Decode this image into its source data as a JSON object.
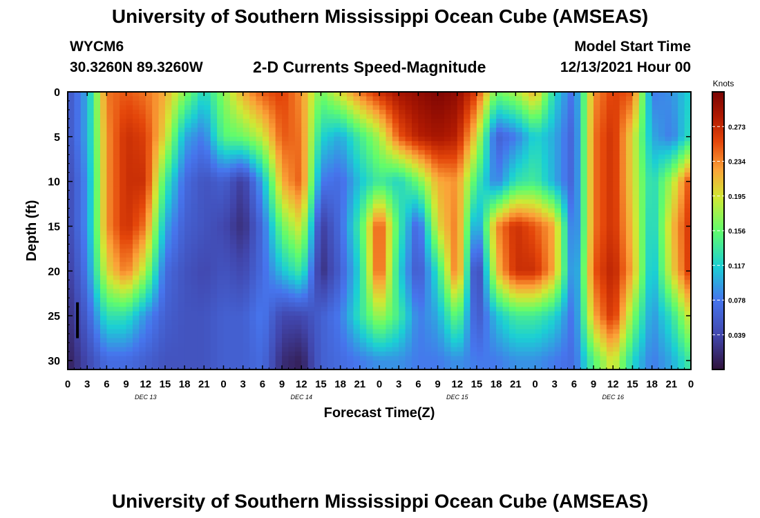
{
  "title": "University of Southern Mississippi Ocean Cube (AMSEAS)",
  "station": {
    "id": "WYCM6",
    "coords": "30.3260N  89.3260W"
  },
  "subtitle": "2-D Currents Speed-Magnitude",
  "model_start": {
    "label": "Model Start Time",
    "value": "12/13/2021 Hour 00"
  },
  "footer_title": "University of Southern Mississippi Ocean Cube (AMSEAS)",
  "chart_data": {
    "type": "heatmap",
    "title": "2-D Currents Speed-Magnitude",
    "xlabel": "Forecast Time(Z)",
    "ylabel": "Depth (ft)",
    "x_ticks": [
      "0",
      "3",
      "6",
      "9",
      "12",
      "15",
      "18",
      "21",
      "0",
      "3",
      "6",
      "9",
      "12",
      "15",
      "18",
      "21",
      "0",
      "3",
      "6",
      "9",
      "12",
      "15",
      "18",
      "21",
      "0",
      "3",
      "6",
      "9",
      "12",
      "15",
      "18",
      "21",
      "0"
    ],
    "day_labels": [
      "DEC 13",
      "DEC 14",
      "DEC 15",
      "DEC 16"
    ],
    "y_ticks": [
      "0",
      "5",
      "10",
      "15",
      "20",
      "25",
      "30"
    ],
    "xlim": [
      0,
      96
    ],
    "ylim": [
      0,
      31
    ],
    "colorbar": {
      "unit": "Knots",
      "range": [
        0,
        0.312
      ],
      "ticks": [
        "0.273",
        "0.234",
        "0.195",
        "0.156",
        "0.117",
        "0.078",
        "0.039"
      ]
    },
    "hours": [
      0,
      3,
      6,
      9,
      12,
      15,
      18,
      21,
      24,
      27,
      30,
      33,
      36,
      39,
      42,
      45,
      48,
      51,
      54,
      57,
      60,
      63,
      66,
      69,
      72,
      75,
      78,
      81,
      84,
      87,
      90,
      93,
      96
    ],
    "depths": [
      0,
      5,
      10,
      15,
      20,
      25,
      30
    ],
    "speed": [
      [
        0.05,
        0.1,
        0.24,
        0.25,
        0.24,
        0.22,
        0.17,
        0.12,
        0.17,
        0.22,
        0.25,
        0.26,
        0.23,
        0.16,
        0.2,
        0.24,
        0.27,
        0.29,
        0.3,
        0.31,
        0.3,
        0.26,
        0.16,
        0.18,
        0.22,
        0.12,
        0.07,
        0.23,
        0.26,
        0.25,
        0.08,
        0.09,
        0.12
      ],
      [
        0.05,
        0.1,
        0.23,
        0.27,
        0.26,
        0.2,
        0.1,
        0.08,
        0.15,
        0.16,
        0.19,
        0.25,
        0.24,
        0.12,
        0.1,
        0.14,
        0.18,
        0.25,
        0.28,
        0.29,
        0.28,
        0.2,
        0.06,
        0.08,
        0.12,
        0.1,
        0.06,
        0.24,
        0.27,
        0.2,
        0.1,
        0.08,
        0.13
      ],
      [
        0.04,
        0.09,
        0.23,
        0.27,
        0.27,
        0.14,
        0.07,
        0.05,
        0.06,
        0.03,
        0.1,
        0.22,
        0.25,
        0.08,
        0.07,
        0.11,
        0.14,
        0.12,
        0.16,
        0.22,
        0.23,
        0.14,
        0.08,
        0.13,
        0.14,
        0.1,
        0.06,
        0.24,
        0.27,
        0.2,
        0.12,
        0.18,
        0.26
      ],
      [
        0.04,
        0.09,
        0.23,
        0.27,
        0.24,
        0.1,
        0.06,
        0.05,
        0.04,
        0.02,
        0.07,
        0.16,
        0.2,
        0.03,
        0.07,
        0.14,
        0.26,
        0.14,
        0.06,
        0.2,
        0.24,
        0.08,
        0.23,
        0.27,
        0.25,
        0.22,
        0.06,
        0.24,
        0.27,
        0.21,
        0.11,
        0.21,
        0.27
      ],
      [
        0.03,
        0.08,
        0.2,
        0.24,
        0.18,
        0.07,
        0.05,
        0.04,
        0.05,
        0.04,
        0.07,
        0.11,
        0.14,
        0.02,
        0.06,
        0.12,
        0.26,
        0.12,
        0.05,
        0.13,
        0.25,
        0.02,
        0.21,
        0.27,
        0.27,
        0.22,
        0.07,
        0.25,
        0.28,
        0.22,
        0.1,
        0.2,
        0.27
      ],
      [
        0.02,
        0.06,
        0.13,
        0.13,
        0.09,
        0.06,
        0.05,
        0.05,
        0.06,
        0.06,
        0.08,
        0.04,
        0.04,
        0.06,
        0.08,
        0.13,
        0.18,
        0.14,
        0.08,
        0.1,
        0.16,
        0.05,
        0.11,
        0.14,
        0.14,
        0.12,
        0.07,
        0.22,
        0.27,
        0.17,
        0.09,
        0.13,
        0.2
      ],
      [
        0.01,
        0.04,
        0.07,
        0.07,
        0.06,
        0.05,
        0.05,
        0.05,
        0.06,
        0.06,
        0.07,
        0.02,
        0.01,
        0.06,
        0.07,
        0.08,
        0.09,
        0.09,
        0.08,
        0.08,
        0.09,
        0.08,
        0.08,
        0.09,
        0.09,
        0.08,
        0.07,
        0.15,
        0.2,
        0.12,
        0.08,
        0.1,
        0.14
      ]
    ]
  }
}
